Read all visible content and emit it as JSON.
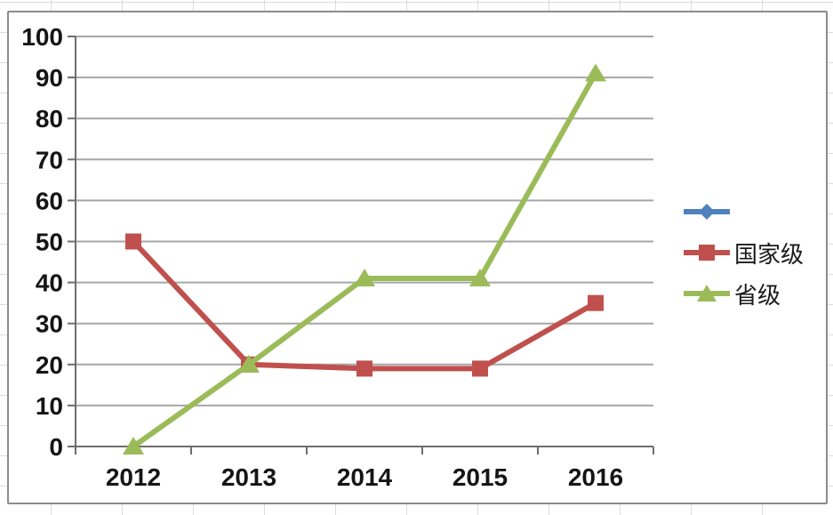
{
  "chart_data": {
    "type": "line",
    "title": "",
    "categories": [
      "2012",
      "2013",
      "2014",
      "2015",
      "2016"
    ],
    "series": [
      {
        "name": "",
        "marker": "diamond",
        "color": "#4F81BD",
        "values": []
      },
      {
        "name": "国家级",
        "marker": "square",
        "color": "#C0504D",
        "values": [
          50,
          20,
          19,
          19,
          35
        ]
      },
      {
        "name": "省级",
        "marker": "triangle",
        "color": "#9BBB59",
        "values": [
          0,
          20,
          41,
          41,
          91
        ]
      }
    ],
    "xlabel": "",
    "ylabel": "",
    "ylim": [
      0,
      100
    ],
    "yticks": [
      0,
      10,
      20,
      30,
      40,
      50,
      60,
      70,
      80,
      90,
      100
    ],
    "grid": "horizontal-major",
    "legend_position": "right",
    "colors": {
      "grid": "#a6a6a6",
      "axis": "#6e6e6e",
      "tick_label": "#151515",
      "frame_border": "#8c8c8c",
      "plot_background": "#ffffff"
    }
  }
}
